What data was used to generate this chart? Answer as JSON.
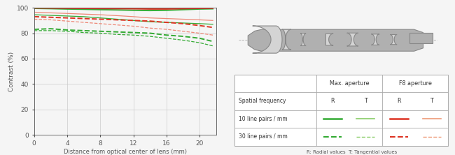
{
  "mtf_x": [
    0,
    2,
    4,
    6,
    8,
    10,
    12,
    14,
    16,
    18,
    20,
    21.6
  ],
  "lines": {
    "10lp_max_R": {
      "y": [
        99.5,
        99.3,
        99.0,
        98.8,
        98.5,
        98.3,
        98.0,
        97.8,
        98.0,
        98.5,
        99.0,
        99.2
      ],
      "color": "#33aa33",
      "lw": 1.4,
      "ls": "solid"
    },
    "10lp_max_T": {
      "y": [
        94.5,
        94.0,
        93.5,
        93.0,
        92.0,
        91.0,
        90.0,
        89.0,
        88.5,
        88.0,
        87.5,
        87.0
      ],
      "color": "#33aa33",
      "lw": 0.9,
      "ls": "solid"
    },
    "30lp_max_R": {
      "y": [
        83.0,
        83.5,
        82.5,
        82.0,
        81.5,
        81.0,
        80.5,
        80.0,
        78.5,
        77.5,
        76.0,
        73.5
      ],
      "color": "#33aa33",
      "lw": 1.4,
      "ls": "dashed"
    },
    "30lp_max_T": {
      "y": [
        82.0,
        82.0,
        81.5,
        80.5,
        80.0,
        79.0,
        78.5,
        77.5,
        76.0,
        74.5,
        72.5,
        70.0
      ],
      "color": "#33aa33",
      "lw": 0.9,
      "ls": "dashed"
    },
    "10lp_f8_R": {
      "y": [
        99.8,
        99.7,
        99.6,
        99.5,
        99.4,
        99.3,
        99.2,
        99.0,
        99.0,
        99.3,
        99.5,
        99.6
      ],
      "color": "#dd3322",
      "lw": 1.4,
      "ls": "solid"
    },
    "10lp_f8_T": {
      "y": [
        96.5,
        96.0,
        95.5,
        95.0,
        94.5,
        93.8,
        93.0,
        92.0,
        91.5,
        91.0,
        90.5,
        90.0
      ],
      "color": "#ee8877",
      "lw": 0.9,
      "ls": "solid"
    },
    "30lp_f8_R": {
      "y": [
        93.0,
        92.5,
        92.0,
        91.5,
        91.0,
        90.5,
        90.0,
        89.5,
        88.5,
        87.5,
        86.0,
        84.5
      ],
      "color": "#dd3322",
      "lw": 1.4,
      "ls": "dashed"
    },
    "30lp_f8_T": {
      "y": [
        91.0,
        90.5,
        89.5,
        88.5,
        87.5,
        86.5,
        85.5,
        84.0,
        83.0,
        81.5,
        80.0,
        78.5
      ],
      "color": "#ee8877",
      "lw": 0.9,
      "ls": "dashed"
    }
  },
  "ylim": [
    0,
    100
  ],
  "xlim": [
    0,
    22
  ],
  "xticks": [
    0,
    4,
    8,
    12,
    16,
    20
  ],
  "yticks": [
    0,
    20,
    40,
    60,
    80,
    100
  ],
  "xlabel": "Distance from optical center of lens (mm)",
  "ylabel": "Contrast (%)",
  "grid_color": "#cccccc",
  "bg_color": "#f5f5f5",
  "axis_color": "#555555",
  "note": "R: Radial values  T: Tangential values",
  "green_dark": "#33aa33",
  "green_light": "#88cc66",
  "red_dark": "#dd3322",
  "red_light": "#ee9977",
  "lens_gray": "#b0b0b0",
  "lens_dark": "#888888",
  "lens_light": "#d4d4d4"
}
